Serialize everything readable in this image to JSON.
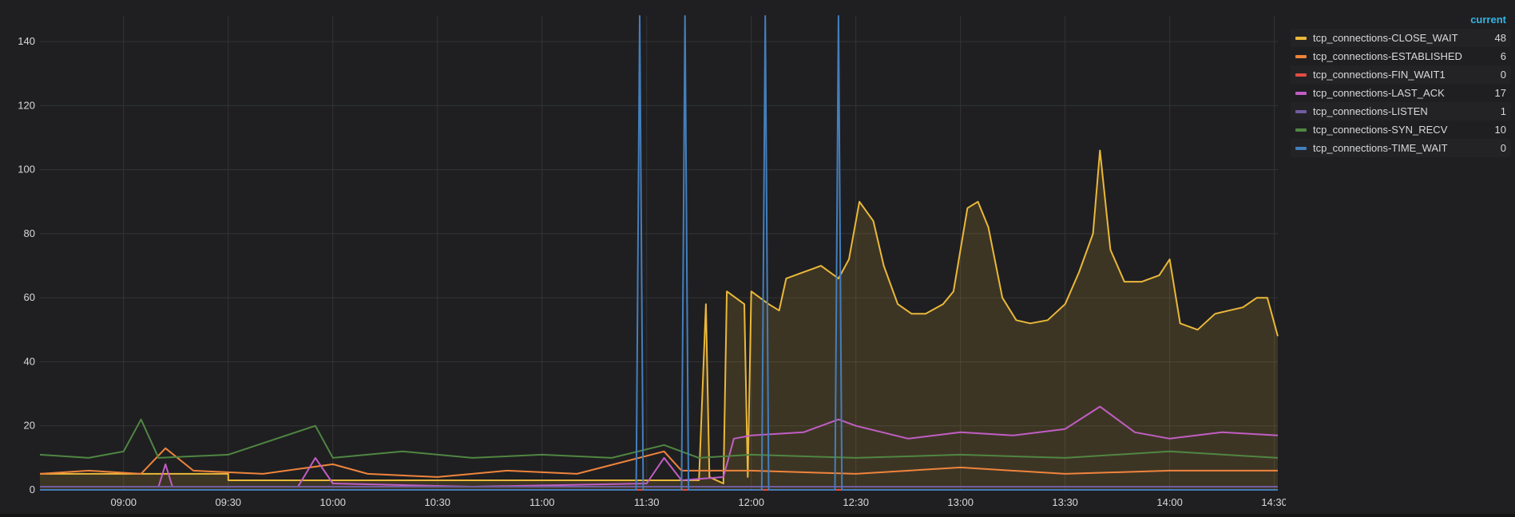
{
  "chart_data": {
    "type": "line",
    "title": "",
    "xlabel": "",
    "ylabel": "",
    "ylim": [
      0,
      148
    ],
    "xlim": [
      "08:36",
      "14:31"
    ],
    "y_ticks": [
      "0",
      "20",
      "40",
      "60",
      "80",
      "100",
      "120",
      "140"
    ],
    "x_ticks": [
      "09:00",
      "09:30",
      "10:00",
      "10:30",
      "11:00",
      "11:30",
      "12:00",
      "12:30",
      "13:00",
      "13:30",
      "14:00",
      "14:30"
    ],
    "grid": true,
    "legend_position": "right",
    "legend_value_header": "current",
    "series": [
      {
        "name": "tcp_connections-CLOSE_WAIT",
        "color": "#eab839",
        "current": "48",
        "fill": true,
        "points": [
          [
            "08:36",
            5
          ],
          [
            "09:30",
            5
          ],
          [
            "09:30",
            3
          ],
          [
            "11:30",
            3
          ],
          [
            "11:45",
            3
          ],
          [
            "11:47",
            58
          ],
          [
            "11:48",
            4
          ],
          [
            "11:52",
            2
          ],
          [
            "11:53",
            62
          ],
          [
            "11:58",
            58
          ],
          [
            "11:59",
            4
          ],
          [
            "12:00",
            62
          ],
          [
            "12:05",
            58
          ],
          [
            "12:08",
            56
          ],
          [
            "12:10",
            66
          ],
          [
            "12:15",
            68
          ],
          [
            "12:20",
            70
          ],
          [
            "12:25",
            66
          ],
          [
            "12:28",
            72
          ],
          [
            "12:31",
            90
          ],
          [
            "12:35",
            84
          ],
          [
            "12:38",
            70
          ],
          [
            "12:42",
            58
          ],
          [
            "12:46",
            55
          ],
          [
            "12:50",
            55
          ],
          [
            "12:55",
            58
          ],
          [
            "12:58",
            62
          ],
          [
            "13:02",
            88
          ],
          [
            "13:05",
            90
          ],
          [
            "13:08",
            82
          ],
          [
            "13:12",
            60
          ],
          [
            "13:16",
            53
          ],
          [
            "13:20",
            52
          ],
          [
            "13:25",
            53
          ],
          [
            "13:30",
            58
          ],
          [
            "13:34",
            68
          ],
          [
            "13:38",
            80
          ],
          [
            "13:40",
            106
          ],
          [
            "13:43",
            75
          ],
          [
            "13:47",
            65
          ],
          [
            "13:52",
            65
          ],
          [
            "13:57",
            67
          ],
          [
            "14:00",
            72
          ],
          [
            "14:03",
            52
          ],
          [
            "14:08",
            50
          ],
          [
            "14:13",
            55
          ],
          [
            "14:17",
            56
          ],
          [
            "14:21",
            57
          ],
          [
            "14:25",
            60
          ],
          [
            "14:28",
            60
          ],
          [
            "14:31",
            48
          ]
        ]
      },
      {
        "name": "tcp_connections-ESTABLISHED",
        "color": "#ef843c",
        "current": "6",
        "fill": false,
        "points": [
          [
            "08:36",
            5
          ],
          [
            "08:50",
            6
          ],
          [
            "09:05",
            5
          ],
          [
            "09:12",
            13
          ],
          [
            "09:20",
            6
          ],
          [
            "09:40",
            5
          ],
          [
            "10:00",
            8
          ],
          [
            "10:10",
            5
          ],
          [
            "10:30",
            4
          ],
          [
            "10:50",
            6
          ],
          [
            "11:10",
            5
          ],
          [
            "11:35",
            12
          ],
          [
            "11:40",
            6
          ],
          [
            "12:00",
            6
          ],
          [
            "12:30",
            5
          ],
          [
            "13:00",
            7
          ],
          [
            "13:30",
            5
          ],
          [
            "14:00",
            6
          ],
          [
            "14:31",
            6
          ]
        ]
      },
      {
        "name": "tcp_connections-FIN_WAIT1",
        "color": "#e24d42",
        "current": "0",
        "fill": false,
        "points": [
          [
            "08:36",
            0
          ],
          [
            "14:31",
            0
          ]
        ]
      },
      {
        "name": "tcp_connections-LAST_ACK",
        "color": "#c15ec4",
        "current": "17",
        "fill": false,
        "points": [
          [
            "08:36",
            1
          ],
          [
            "09:10",
            1
          ],
          [
            "09:12",
            8
          ],
          [
            "09:14",
            1
          ],
          [
            "09:50",
            1
          ],
          [
            "09:55",
            10
          ],
          [
            "10:00",
            2
          ],
          [
            "10:40",
            1
          ],
          [
            "11:30",
            2
          ],
          [
            "11:35",
            10
          ],
          [
            "11:40",
            3
          ],
          [
            "11:52",
            4
          ],
          [
            "11:55",
            16
          ],
          [
            "12:00",
            17
          ],
          [
            "12:15",
            18
          ],
          [
            "12:25",
            22
          ],
          [
            "12:30",
            20
          ],
          [
            "12:45",
            16
          ],
          [
            "13:00",
            18
          ],
          [
            "13:15",
            17
          ],
          [
            "13:30",
            19
          ],
          [
            "13:40",
            26
          ],
          [
            "13:50",
            18
          ],
          [
            "14:00",
            16
          ],
          [
            "14:15",
            18
          ],
          [
            "14:31",
            17
          ]
        ]
      },
      {
        "name": "tcp_connections-LISTEN",
        "color": "#705da0",
        "current": "1",
        "fill": false,
        "points": [
          [
            "08:36",
            1
          ],
          [
            "14:31",
            1
          ]
        ]
      },
      {
        "name": "tcp_connections-SYN_RECV",
        "color": "#508642",
        "current": "10",
        "fill": false,
        "points": [
          [
            "08:36",
            11
          ],
          [
            "08:50",
            10
          ],
          [
            "09:00",
            12
          ],
          [
            "09:05",
            22
          ],
          [
            "09:10",
            10
          ],
          [
            "09:30",
            11
          ],
          [
            "09:55",
            20
          ],
          [
            "10:00",
            10
          ],
          [
            "10:20",
            12
          ],
          [
            "10:40",
            10
          ],
          [
            "11:00",
            11
          ],
          [
            "11:20",
            10
          ],
          [
            "11:35",
            14
          ],
          [
            "11:45",
            10
          ],
          [
            "12:00",
            11
          ],
          [
            "12:30",
            10
          ],
          [
            "13:00",
            11
          ],
          [
            "13:30",
            10
          ],
          [
            "14:00",
            12
          ],
          [
            "14:31",
            10
          ]
        ]
      },
      {
        "name": "tcp_connections-TIME_WAIT",
        "color": "#447ebc",
        "current": "0",
        "fill": false,
        "points": [
          [
            "08:36",
            0
          ],
          [
            "11:27",
            0
          ],
          [
            "11:28",
            148
          ],
          [
            "11:29",
            0
          ],
          [
            "11:40",
            0
          ],
          [
            "11:41",
            148
          ],
          [
            "11:42",
            0
          ],
          [
            "12:03",
            0
          ],
          [
            "12:04",
            148
          ],
          [
            "12:05",
            0
          ],
          [
            "12:24",
            0
          ],
          [
            "12:25",
            148
          ],
          [
            "12:26",
            0
          ],
          [
            "14:31",
            0
          ]
        ]
      }
    ]
  }
}
